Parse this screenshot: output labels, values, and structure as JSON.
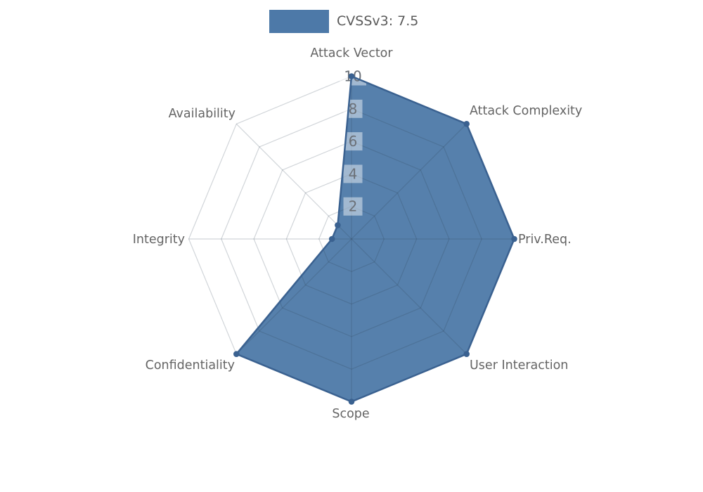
{
  "legend": {
    "label": "CVSSv3: 7.5",
    "color": "#4d79a8"
  },
  "chart_data": {
    "type": "radar",
    "title": "CVSSv3: 7.5",
    "categories": [
      "Attack Vector",
      "Attack Complexity",
      "Priv.Req.",
      "User Interaction",
      "Scope",
      "Confidentiality",
      "Integrity",
      "Availability"
    ],
    "series": [
      {
        "name": "CVSSv3: 7.5",
        "color": "#4d79a8",
        "values": [
          10,
          10,
          10,
          10,
          10,
          10,
          1.2,
          1.2
        ]
      }
    ],
    "radial_ticks": [
      2,
      4,
      6,
      8,
      10
    ],
    "rmin": 0,
    "rmax": 10,
    "start": "top",
    "direction": "clockwise",
    "grid": "polygon-web",
    "legend_position": "top-center"
  },
  "colors": {
    "background": "#ffffff",
    "fill": "#4d79a8",
    "border": "#3a6190",
    "marker": "#3a6190",
    "axis_label": "#646464",
    "tick_label": "#6b7077",
    "tick_backdrop": "rgba(255,255,255,0.45)",
    "web_line": "rgba(45,62,80,0.22)"
  }
}
